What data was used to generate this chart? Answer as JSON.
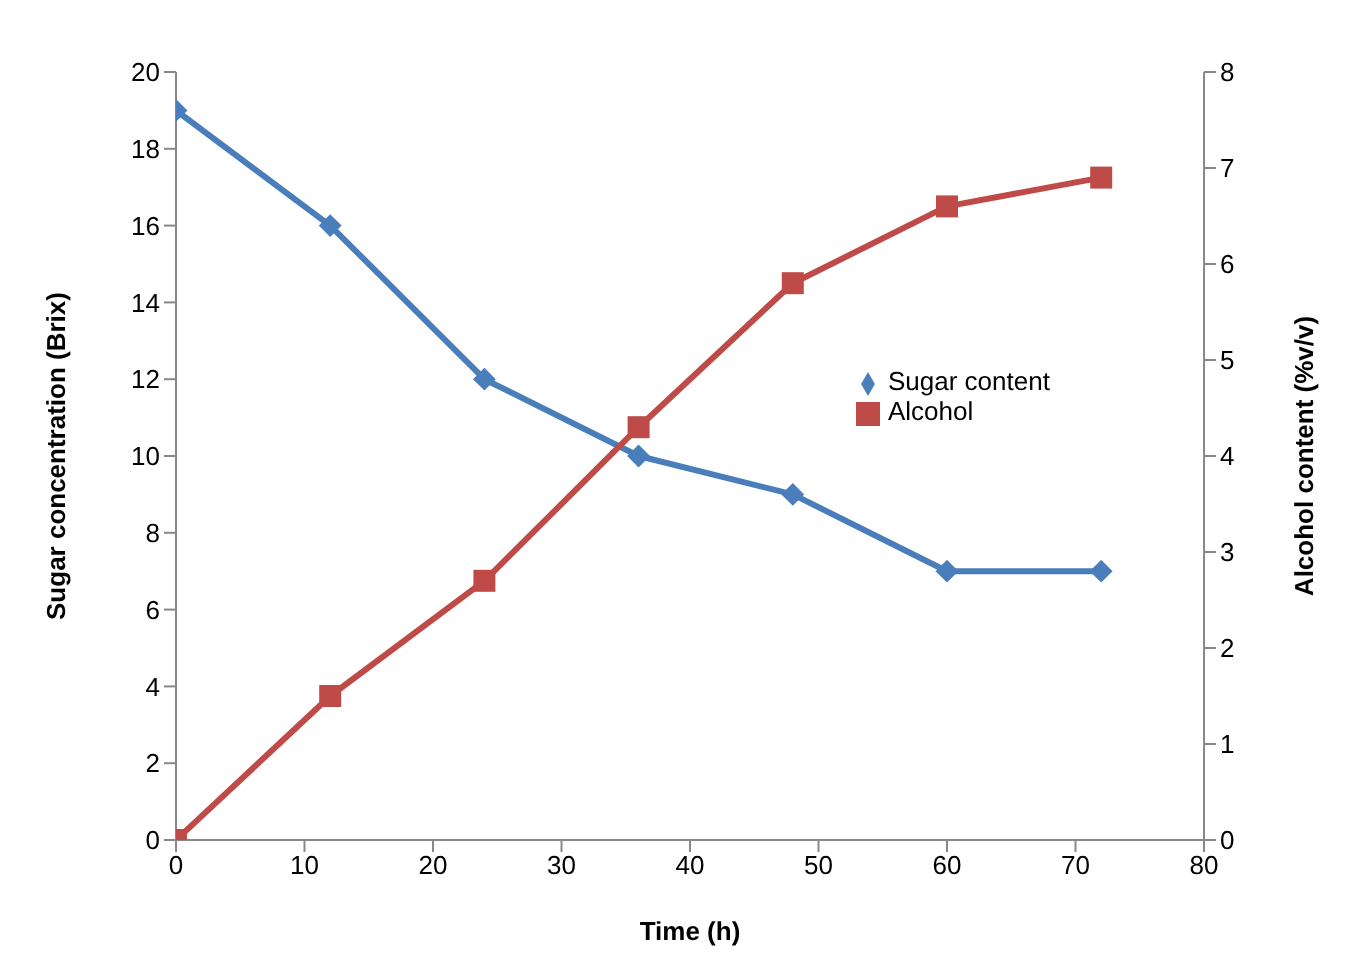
{
  "chart_data": {
    "type": "line",
    "xlabel": "Time (h)",
    "ylabel": "Sugar concentration (Brix)",
    "y2label": "Alcohol content (%v/v)",
    "x": [
      0,
      12,
      24,
      36,
      48,
      60,
      72
    ],
    "series": [
      {
        "name": "Sugar content",
        "color": "#4a7ebb",
        "marker": "diamond",
        "values": [
          19,
          16,
          12,
          10,
          9,
          7,
          7
        ]
      },
      {
        "name": "Alcohol",
        "color": "#be4b48",
        "marker": "square",
        "axis": "y2",
        "values": [
          0,
          1.5,
          2.7,
          4.3,
          5.8,
          6.6,
          6.9
        ]
      }
    ],
    "xlim": [
      0,
      80
    ],
    "xticks": [
      0,
      10,
      20,
      30,
      40,
      50,
      60,
      70,
      80
    ],
    "ylim": [
      0,
      20
    ],
    "yticks": [
      0,
      2,
      4,
      6,
      8,
      10,
      12,
      14,
      16,
      18,
      20
    ],
    "y2lim": [
      0,
      8
    ],
    "y2ticks": [
      0,
      1,
      2,
      3,
      4,
      5,
      6,
      7,
      8
    ],
    "grid": false,
    "legend": "right",
    "line_style": "solid"
  }
}
